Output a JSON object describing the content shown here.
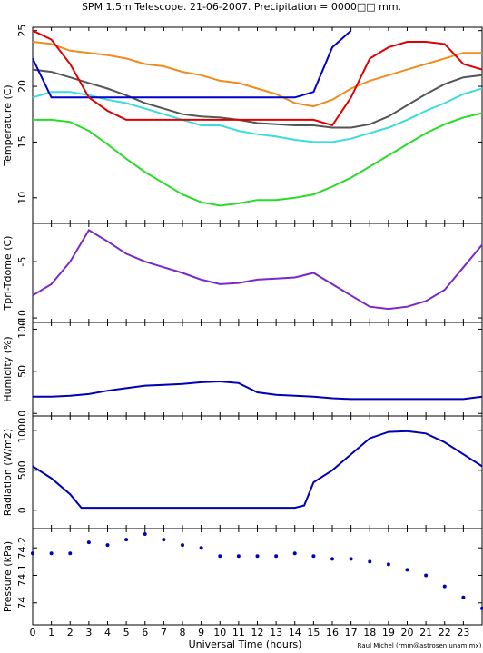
{
  "chart_data": [
    {
      "type": "line",
      "title": "SPM 1.5m Telescope. 21-06-2007. Precipitation = 0000□□ mm.",
      "ylabel": "Temperature (C)",
      "xlim": [
        0,
        24
      ],
      "ylim": [
        7.7,
        25.3
      ],
      "yticks": [
        10,
        15,
        20,
        25
      ],
      "x": [
        0,
        1,
        2,
        3,
        4,
        5,
        6,
        7,
        8,
        9,
        10,
        11,
        12,
        13,
        14,
        15,
        16,
        17,
        18,
        19,
        20,
        21,
        22,
        23,
        24
      ],
      "series": [
        {
          "color": "#f08c1e",
          "values": [
            24,
            23.8,
            23.2,
            23,
            22.8,
            22.5,
            22,
            21.8,
            21.3,
            21,
            20.5,
            20.3,
            19.8,
            19.3,
            18.5,
            18.2,
            18.8,
            19.8,
            20.5,
            21,
            21.5,
            22,
            22.5,
            23,
            23
          ]
        },
        {
          "color": "#555555",
          "values": [
            21.5,
            21.3,
            20.8,
            20.3,
            19.8,
            19.2,
            18.5,
            18,
            17.5,
            17.3,
            17.2,
            17,
            16.7,
            16.6,
            16.5,
            16.5,
            16.3,
            16.3,
            16.6,
            17.3,
            18.3,
            19.3,
            20.2,
            20.8,
            21
          ]
        },
        {
          "color": "#3cdcdc",
          "values": [
            19,
            19.5,
            19.5,
            19.2,
            18.8,
            18.5,
            18,
            17.5,
            17,
            16.5,
            16.5,
            16,
            15.7,
            15.5,
            15.2,
            15,
            15,
            15.3,
            15.8,
            16.3,
            17,
            17.8,
            18.5,
            19.3,
            19.8
          ]
        },
        {
          "color": "#0000c8",
          "values": [
            22.5,
            19,
            19,
            19,
            19,
            19,
            19,
            19,
            19,
            19,
            19,
            19,
            19,
            19,
            19,
            19.5,
            23.5,
            25,
            null,
            null,
            null,
            null,
            null,
            null,
            null
          ]
        },
        {
          "color": "#e00000",
          "values": [
            25,
            24.2,
            22,
            19,
            17.8,
            17,
            17,
            17,
            17,
            17,
            17,
            17,
            17,
            17,
            17,
            17,
            16.5,
            19,
            22.5,
            23.5,
            24,
            24,
            23.8,
            22,
            21.5
          ]
        },
        {
          "color": "#28dc28",
          "values": [
            17,
            17,
            16.8,
            16,
            14.8,
            13.5,
            12.3,
            11.3,
            10.3,
            9.6,
            9.3,
            9.5,
            9.8,
            9.8,
            10,
            10.3,
            11,
            11.8,
            12.8,
            13.8,
            14.8,
            15.8,
            16.6,
            17.2,
            17.6
          ]
        }
      ]
    },
    {
      "type": "line",
      "ylabel": "Tpri-Tdome (C)",
      "xlim": [
        0,
        24
      ],
      "ylim": [
        -10.4,
        -1.6
      ],
      "yticks": [
        -10,
        -5
      ],
      "x": [
        0,
        1,
        2,
        3,
        4,
        5,
        6,
        7,
        8,
        9,
        10,
        11,
        12,
        13,
        14,
        15,
        16,
        17,
        18,
        19,
        20,
        21,
        22,
        23,
        24
      ],
      "series": [
        {
          "color": "#7a28c8",
          "values": [
            -8,
            -7,
            -5,
            -2.2,
            -3.2,
            -4.3,
            -5,
            -5.5,
            -6,
            -6.6,
            -7,
            -6.9,
            -6.6,
            -6.5,
            -6.4,
            -6,
            -7,
            -8,
            -9,
            -9.2,
            -9,
            -8.5,
            -7.5,
            -5.5,
            -3.5
          ]
        }
      ]
    },
    {
      "type": "line",
      "ylabel": "Humidity (%)",
      "xlim": [
        0,
        24
      ],
      "ylim": [
        -3,
        108
      ],
      "yticks": [
        0,
        50,
        100
      ],
      "x": [
        0,
        1,
        2,
        3,
        4,
        5,
        6,
        7,
        8,
        9,
        10,
        11,
        12,
        13,
        14,
        15,
        16,
        17,
        18,
        19,
        20,
        21,
        22,
        23,
        24
      ],
      "series": [
        {
          "color": "#0000b4",
          "values": [
            20,
            20,
            21,
            23,
            27,
            30,
            33,
            34,
            35,
            37,
            38,
            36,
            25,
            22,
            21,
            20,
            18,
            17,
            17,
            17,
            17,
            17,
            17,
            17,
            20
          ]
        }
      ]
    },
    {
      "type": "line",
      "ylabel": "Radiation (W/m2)",
      "xlim": [
        0,
        24
      ],
      "ylim": [
        -230,
        1180
      ],
      "yticks": [
        0,
        500,
        1000
      ],
      "x": [
        0,
        1,
        2,
        2.6,
        3,
        4,
        5,
        6,
        7,
        8,
        9,
        10,
        11,
        12,
        13,
        14,
        14.5,
        15,
        16,
        17,
        18,
        19,
        20,
        21,
        22,
        23,
        24
      ],
      "series": [
        {
          "color": "#0000b4",
          "values": [
            550,
            400,
            200,
            30,
            30,
            30,
            30,
            30,
            30,
            30,
            30,
            30,
            30,
            30,
            30,
            30,
            60,
            350,
            500,
            700,
            900,
            980,
            990,
            960,
            850,
            700,
            550
          ]
        }
      ]
    },
    {
      "type": "scatter",
      "ylabel": "Pressure (kPa)",
      "xlabel": "Universal Time (hours)",
      "annotation": "Raul Michel (rmm@astrosen.unam.mx)",
      "xlim": [
        0,
        24
      ],
      "ylim": [
        73.92,
        74.27
      ],
      "yticks": [
        74,
        74.1,
        74.2
      ],
      "xticks": [
        0,
        1,
        2,
        3,
        4,
        5,
        6,
        7,
        8,
        9,
        10,
        11,
        12,
        13,
        14,
        15,
        16,
        17,
        18,
        19,
        20,
        21,
        22,
        23
      ],
      "x": [
        0,
        1,
        2,
        3,
        4,
        5,
        6,
        7,
        8,
        9,
        10,
        11,
        12,
        13,
        14,
        15,
        16,
        17,
        18,
        19,
        20,
        21,
        22,
        23,
        24
      ],
      "series": [
        {
          "color": "#0000b4",
          "values": [
            74.18,
            74.18,
            74.18,
            74.22,
            74.21,
            74.23,
            74.25,
            74.23,
            74.21,
            74.2,
            74.17,
            74.17,
            74.17,
            74.17,
            74.18,
            74.17,
            74.16,
            74.16,
            74.15,
            74.14,
            74.12,
            74.1,
            74.06,
            74.02,
            73.98
          ]
        }
      ]
    }
  ]
}
